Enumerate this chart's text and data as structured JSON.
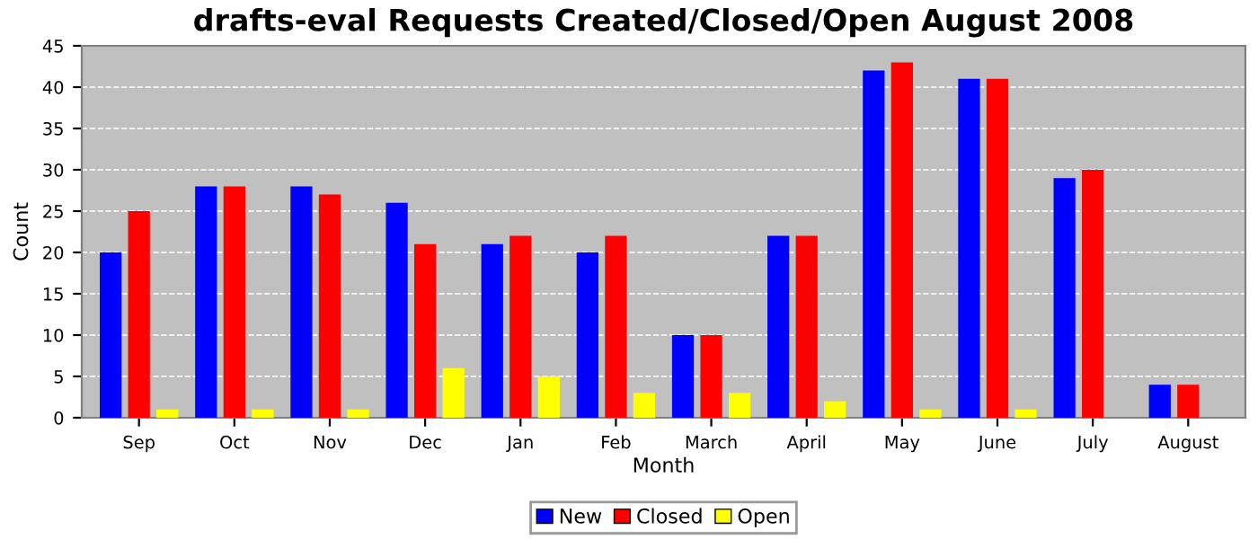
{
  "chart_data": {
    "type": "bar",
    "title": "drafts-eval Requests Created/Closed/Open August 2008",
    "xlabel": "Month",
    "ylabel": "Count",
    "categories": [
      "Sep",
      "Oct",
      "Nov",
      "Dec",
      "Jan",
      "Feb",
      "March",
      "April",
      "May",
      "June",
      "July",
      "August"
    ],
    "series": [
      {
        "name": "New",
        "color": "#0000ff",
        "values": [
          20,
          28,
          28,
          26,
          21,
          20,
          10,
          22,
          42,
          41,
          29,
          4
        ]
      },
      {
        "name": "Closed",
        "color": "#ff0000",
        "values": [
          25,
          28,
          27,
          21,
          22,
          22,
          10,
          22,
          43,
          41,
          30,
          4
        ]
      },
      {
        "name": "Open",
        "color": "#ffff00",
        "values": [
          1,
          1,
          1,
          6,
          5,
          3,
          3,
          2,
          1,
          1,
          0,
          0
        ]
      }
    ],
    "ylim": [
      0,
      45
    ],
    "yticks": [
      0,
      5,
      10,
      15,
      20,
      25,
      30,
      35,
      40,
      45
    ],
    "grid": "y",
    "legend": "bottom"
  }
}
